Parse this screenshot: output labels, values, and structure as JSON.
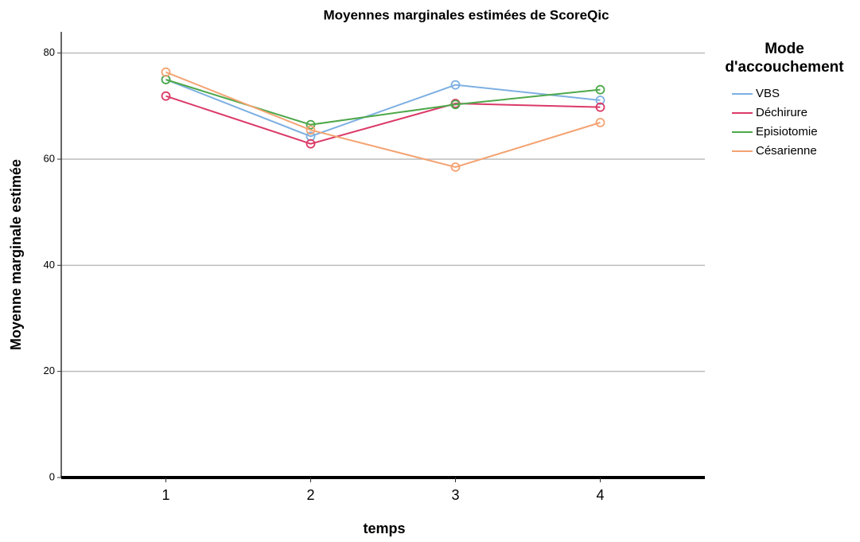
{
  "chart_data": {
    "type": "line",
    "title": "Moyennes marginales estimées de ScoreQic",
    "x_label": "temps",
    "y_label": "Moyenne marginale estimée",
    "legend_title": [
      "Mode",
      "d'accouchement"
    ],
    "legend_position": "right",
    "grid": true,
    "categories": [
      "1",
      "2",
      "3",
      "4"
    ],
    "ylim": [
      0,
      84
    ],
    "yticks": [
      0,
      20,
      40,
      60,
      80
    ],
    "series": [
      {
        "name": "VBS",
        "color": "#7eb0e2",
        "values": [
          75.0,
          64.3,
          74.0,
          71.1
        ]
      },
      {
        "name": "Déchirure",
        "color": "#db3a68",
        "values": [
          71.9,
          62.9,
          70.5,
          69.8
        ]
      },
      {
        "name": "Episiotomie",
        "color": "#4ea84a",
        "values": [
          75.0,
          66.5,
          70.3,
          73.1
        ]
      },
      {
        "name": "Césarienne",
        "color": "#f4a372",
        "values": [
          76.4,
          65.5,
          58.5,
          66.9
        ]
      }
    ]
  }
}
